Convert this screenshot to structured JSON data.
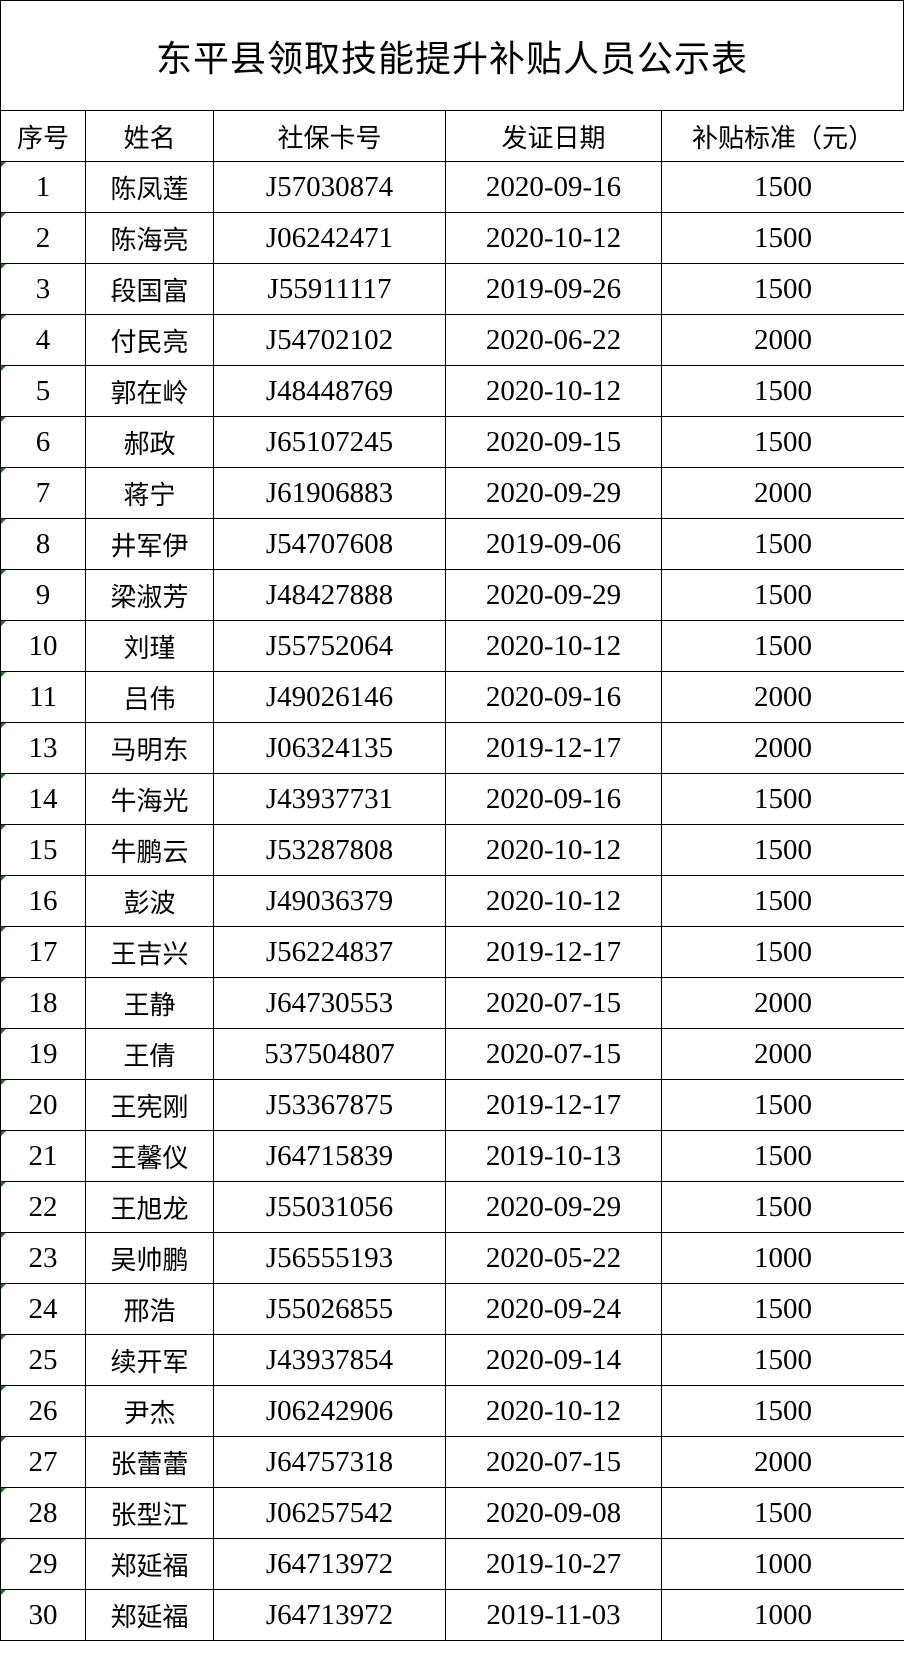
{
  "title": "东平县领取技能提升补贴人员公示表",
  "headers": [
    "序号",
    "姓名",
    "社保卡号",
    "发证日期",
    "补贴标准（元）"
  ],
  "rows": [
    [
      "1",
      "陈凤莲",
      "J57030874",
      "2020-09-16",
      "1500"
    ],
    [
      "2",
      "陈海亮",
      "J06242471",
      "2020-10-12",
      "1500"
    ],
    [
      "3",
      "段国富",
      "J55911117",
      "2019-09-26",
      "1500"
    ],
    [
      "4",
      "付民亮",
      "J54702102",
      "2020-06-22",
      "2000"
    ],
    [
      "5",
      "郭在岭",
      "J48448769",
      "2020-10-12",
      "1500"
    ],
    [
      "6",
      "郝政",
      "J65107245",
      "2020-09-15",
      "1500"
    ],
    [
      "7",
      "蒋宁",
      "J61906883",
      "2020-09-29",
      "2000"
    ],
    [
      "8",
      "井军伊",
      "J54707608",
      "2019-09-06",
      "1500"
    ],
    [
      "9",
      "梁淑芳",
      "J48427888",
      "2020-09-29",
      "1500"
    ],
    [
      "10",
      "刘瑾",
      "J55752064",
      "2020-10-12",
      "1500"
    ],
    [
      "11",
      "吕伟",
      "J49026146",
      "2020-09-16",
      "2000"
    ],
    [
      "13",
      "马明东",
      "J06324135",
      "2019-12-17",
      "2000"
    ],
    [
      "14",
      "牛海光",
      "J43937731",
      "2020-09-16",
      "1500"
    ],
    [
      "15",
      "牛鹏云",
      "J53287808",
      "2020-10-12",
      "1500"
    ],
    [
      "16",
      "彭波",
      "J49036379",
      "2020-10-12",
      "1500"
    ],
    [
      "17",
      "王吉兴",
      "J56224837",
      "2019-12-17",
      "1500"
    ],
    [
      "18",
      "王静",
      "J64730553",
      "2020-07-15",
      "2000"
    ],
    [
      "19",
      "王倩",
      "537504807",
      "2020-07-15",
      "2000"
    ],
    [
      "20",
      "王宪刚",
      "J53367875",
      "2019-12-17",
      "1500"
    ],
    [
      "21",
      "王馨仪",
      "J64715839",
      "2019-10-13",
      "1500"
    ],
    [
      "22",
      "王旭龙",
      "J55031056",
      "2020-09-29",
      "1500"
    ],
    [
      "23",
      "吴帅鹏",
      "J56555193",
      "2020-05-22",
      "1000"
    ],
    [
      "24",
      "邢浩",
      "J55026855",
      "2020-09-24",
      "1500"
    ],
    [
      "25",
      "续开军",
      "J43937854",
      "2020-09-14",
      "1500"
    ],
    [
      "26",
      "尹杰",
      "J06242906",
      "2020-10-12",
      "1500"
    ],
    [
      "27",
      "张蕾蕾",
      "J64757318",
      "2020-07-15",
      "2000"
    ],
    [
      "28",
      "张型江",
      "J06257542",
      "2020-09-08",
      "1500"
    ],
    [
      "29",
      "郑延福",
      "J64713972",
      "2019-10-27",
      "1000"
    ],
    [
      "30",
      "郑延福",
      "J64713972",
      "2019-11-03",
      "1000"
    ]
  ]
}
